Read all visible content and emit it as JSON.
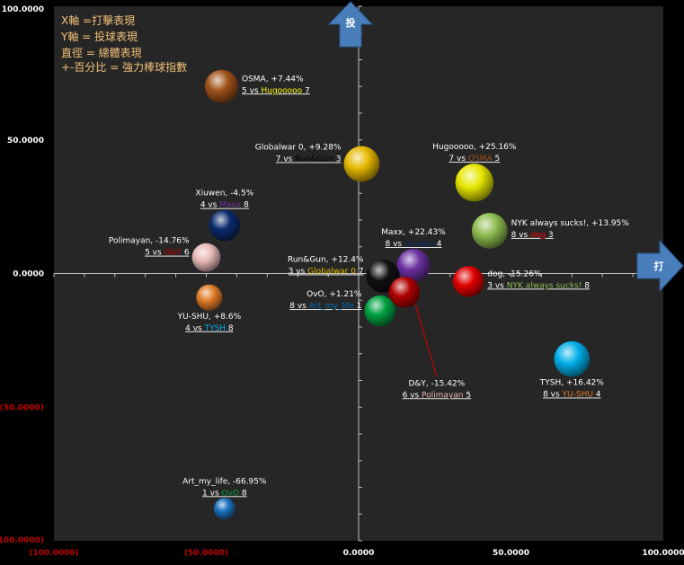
{
  "legend_notes": [
    "X軸 =打擊表現",
    "Y軸 = 投球表現",
    "直徑 = 總體表現",
    "+-百分比 = 強力棒球指數"
  ],
  "arrows": {
    "y_label": "投",
    "x_label": "打"
  },
  "colors": {
    "background": "#000000",
    "plot_area": "#262626",
    "axis": "#bfbfbf",
    "tick_text": "#ffffff",
    "negative_tick_text": "#c00000",
    "legend_text": "#f4c27a",
    "arrow_fill": "#4a7ebb",
    "label_text": "#ffffff"
  },
  "chart_data": {
    "type": "scatter",
    "title": "",
    "xlabel": "",
    "ylabel": "",
    "xlim": [
      -100,
      100
    ],
    "ylim": [
      -100,
      100
    ],
    "x_ticks": [
      {
        "value": -100,
        "label": "(100.0000)"
      },
      {
        "value": -50,
        "label": "(50.0000)"
      },
      {
        "value": 0,
        "label": "0.0000"
      },
      {
        "value": 50,
        "label": "50.0000"
      },
      {
        "value": 100,
        "label": "100.0000"
      }
    ],
    "y_ticks": [
      {
        "value": 100,
        "label": "100.0000"
      },
      {
        "value": 50,
        "label": "50.0000"
      },
      {
        "value": 0,
        "label": "0.0000"
      },
      {
        "value": -50,
        "label": "(50.0000)"
      },
      {
        "value": -100,
        "label": "(100.0000)"
      }
    ],
    "grid": false,
    "points": [
      {
        "name": "OSMA",
        "index": "+7.44%",
        "x": -45,
        "y": 70,
        "size": 7.0,
        "color": "#a0521a",
        "label_side": "right",
        "score_self": "5",
        "opponent": "Hugooooo",
        "score_opp": "7",
        "opponent_color": "#ffff00"
      },
      {
        "name": "Globalwar 0",
        "index": "+9.28%",
        "x": 1,
        "y": 41,
        "size": 7.5,
        "color": "#e6b800",
        "label_side": "left",
        "score_self": "7",
        "opponent": "Run&Gun",
        "score_opp": "3",
        "opponent_color": "#000000"
      },
      {
        "name": "Hugooooo",
        "index": "+25.16%",
        "x": 38,
        "y": 34,
        "size": 8.0,
        "color": "#e6e600",
        "label_side": "above",
        "score_self": "7",
        "opponent": "OSMA",
        "score_opp": "5",
        "opponent_color": "#a0521a"
      },
      {
        "name": "Xiuwen",
        "index": "-4.5%",
        "x": -44,
        "y": 18,
        "size": 6.5,
        "color": "#0b2a6b",
        "label_side": "above",
        "score_self": "4",
        "opponent": "Maxx",
        "score_opp": "8",
        "opponent_color": "#7030a0"
      },
      {
        "name": "NYK always sucks!",
        "index": "+13.95%",
        "x": 43,
        "y": 16,
        "size": 7.5,
        "color": "#8dbb4f",
        "label_side": "right",
        "score_self": "8",
        "opponent": "dog",
        "score_opp": "3",
        "opponent_color": "#ff0000"
      },
      {
        "name": "Maxx",
        "index": "+22.43%",
        "x": 18,
        "y": 3,
        "size": 7.0,
        "color": "#6a2fa0",
        "label_side": "above",
        "score_self": "8",
        "opponent": "Xiuwen",
        "score_opp": "4",
        "opponent_color": "#0b2a6b"
      },
      {
        "name": "Polimayan",
        "index": "-14.76%",
        "x": -50,
        "y": 6,
        "size": 6.0,
        "color": "#e8b8b8",
        "label_side": "left",
        "score_self": "5",
        "opponent": "D&Y",
        "score_opp": "6",
        "opponent_color": "#c00000"
      },
      {
        "name": "Run&Gun",
        "index": "+12.4%",
        "x": 8,
        "y": -1,
        "size": 7.0,
        "color": "#111111",
        "label_side": "left",
        "score_self": "3",
        "opponent": "Globalwar 0",
        "score_opp": "7",
        "opponent_color": "#e6b800"
      },
      {
        "name": "dog",
        "index": "-15.26%",
        "x": 36,
        "y": -3,
        "size": 6.5,
        "color": "#e00000",
        "label_side": "right",
        "score_self": "3",
        "opponent": "NYK always sucks!",
        "score_opp": "8",
        "opponent_color": "#8dbb4f"
      },
      {
        "name": "D&Y",
        "index": "-15.42%",
        "x": 15,
        "y": -7,
        "size": 6.5,
        "color": "#b00000",
        "label_side": "callout",
        "score_self": "6",
        "opponent": "Polimayan",
        "score_opp": "5",
        "opponent_color": "#e8b8b8"
      },
      {
        "name": "YU-SHU",
        "index": "+8.6%",
        "x": -49,
        "y": -9,
        "size": 5.5,
        "color": "#e07b28",
        "label_side": "below",
        "score_self": "4",
        "opponent": "TYSH",
        "score_opp": "8",
        "opponent_color": "#00b0f0"
      },
      {
        "name": "OvO",
        "index": "+1.21%",
        "x": 7,
        "y": -14,
        "size": 6.5,
        "color": "#00a040",
        "label_side": "left",
        "score_self": "8",
        "opponent": "Art_my_life",
        "score_opp": "1",
        "opponent_color": "#0070c0"
      },
      {
        "name": "TYSH",
        "index": "+16.42%",
        "x": 70,
        "y": -32,
        "size": 7.5,
        "color": "#00aee8",
        "label_side": "below",
        "score_self": "8",
        "opponent": "YU-SHU",
        "score_opp": "4",
        "opponent_color": "#e07b28"
      },
      {
        "name": "Art_my_life",
        "index": "-66.95%",
        "x": -44,
        "y": -88,
        "size": 4.5,
        "color": "#1a6fc0",
        "label_side": "above",
        "score_self": "1",
        "opponent": "OvO",
        "score_opp": "8",
        "opponent_color": "#00a040"
      }
    ]
  }
}
